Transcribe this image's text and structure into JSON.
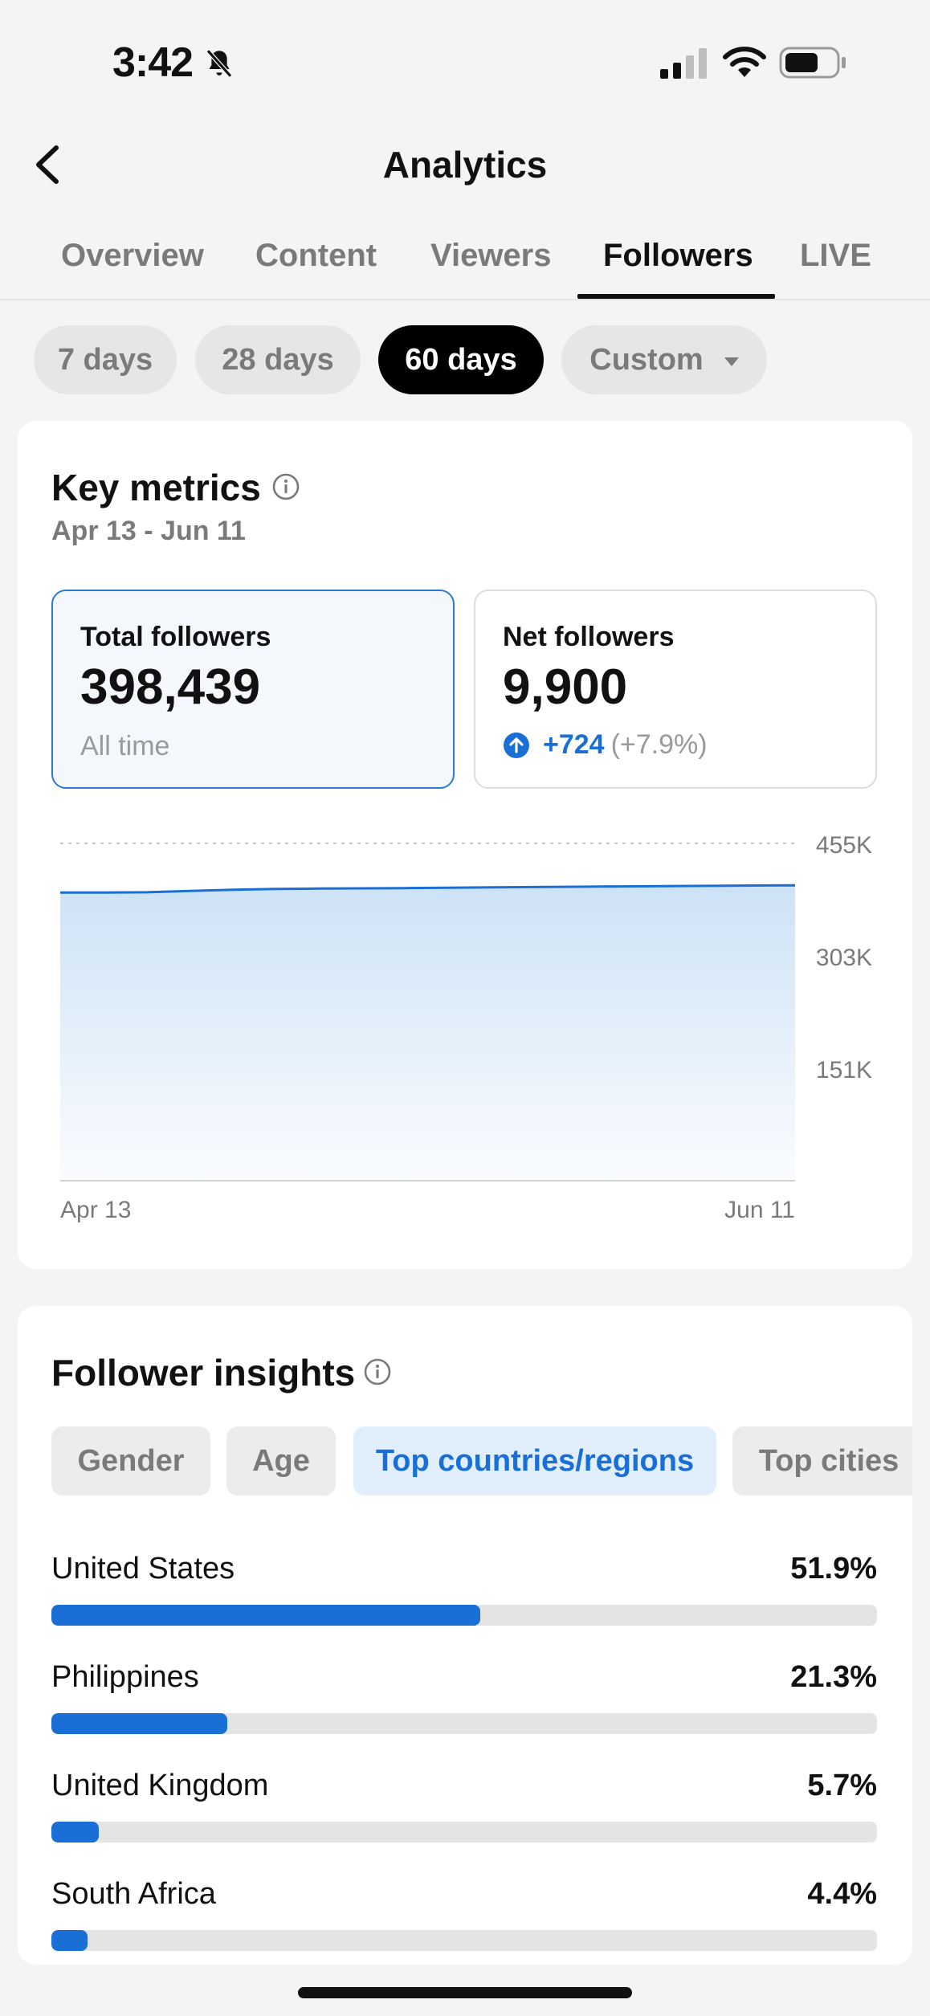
{
  "status_bar": {
    "time": "3:42"
  },
  "header": {
    "title": "Analytics"
  },
  "tabs": [
    {
      "label": "Overview"
    },
    {
      "label": "Content"
    },
    {
      "label": "Viewers"
    },
    {
      "label": "Followers"
    },
    {
      "label": "LIVE"
    }
  ],
  "active_tab": "Followers",
  "ranges": [
    {
      "label": "7 days"
    },
    {
      "label": "28 days"
    },
    {
      "label": "60 days"
    },
    {
      "label": "Custom"
    }
  ],
  "active_range": "60 days",
  "key_metrics": {
    "title": "Key metrics",
    "date_range": "Apr 13 - Jun 11",
    "total": {
      "label": "Total followers",
      "value": "398,439",
      "sub": "All time"
    },
    "net": {
      "label": "Net followers",
      "value": "9,900",
      "change": "+724",
      "change_pct": "(+7.9%)"
    }
  },
  "chart_data": {
    "type": "area",
    "x_start_label": "Apr 13",
    "x_end_label": "Jun 11",
    "y_ticks": [
      "455K",
      "303K",
      "151K"
    ],
    "ylim": [
      0,
      455000
    ],
    "grid": true,
    "color": "#1a6fd6",
    "series": [
      {
        "values": [
          388539,
          388700,
          389000,
          390800,
          392500,
          393500,
          394000,
          394300,
          394700,
          395100,
          395600,
          396100,
          396500,
          396900,
          397300,
          397700,
          398100,
          398439
        ]
      }
    ]
  },
  "follower_insights": {
    "title": "Follower insights",
    "segments": [
      {
        "label": "Gender"
      },
      {
        "label": "Age"
      },
      {
        "label": "Top countries/regions"
      },
      {
        "label": "Top cities"
      }
    ],
    "active_segment": "Top countries/regions",
    "countries": [
      {
        "name": "United States",
        "pct_label": "51.9%",
        "pct": 51.9
      },
      {
        "name": "Philippines",
        "pct_label": "21.3%",
        "pct": 21.3
      },
      {
        "name": "United Kingdom",
        "pct_label": "5.7%",
        "pct": 5.7
      },
      {
        "name": "South Africa",
        "pct_label": "4.4%",
        "pct": 4.4
      }
    ]
  },
  "colors": {
    "accent": "#1a6fd6",
    "background": "#f4f4f4"
  },
  "icons": [
    "bell-slash-icon",
    "signal-icon",
    "wifi-icon",
    "battery-icon",
    "back-arrow-icon",
    "info-icon",
    "up-arrow-icon",
    "dropdown-caret-icon"
  ]
}
